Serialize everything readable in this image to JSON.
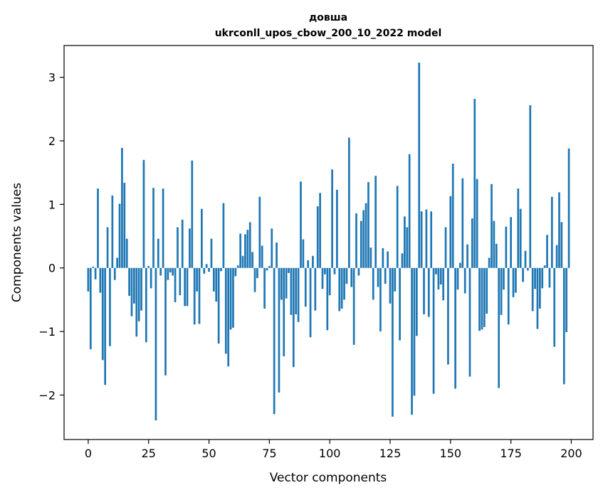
{
  "chart_data": {
    "type": "bar",
    "title": "довша",
    "subtitle": "ukrconll_upos_cbow_200_10_2022 model",
    "xlabel": "Vector components",
    "ylabel": "Components values",
    "xlim": [
      -10,
      209
    ],
    "ylim": [
      -2.7,
      3.5
    ],
    "xticks": [
      0,
      25,
      50,
      75,
      100,
      125,
      150,
      175,
      200
    ],
    "xtick_labels": [
      "0",
      "25",
      "50",
      "75",
      "100",
      "125",
      "150",
      "175",
      "200"
    ],
    "yticks": [
      -2,
      -1,
      0,
      1,
      2,
      3
    ],
    "ytick_labels": [
      "−2",
      "−1",
      "0",
      "1",
      "2",
      "3"
    ],
    "grid": false,
    "bar_color": "#1f77b4",
    "x": [
      0,
      1,
      2,
      3,
      4,
      5,
      6,
      7,
      8,
      9,
      10,
      11,
      12,
      13,
      14,
      15,
      16,
      17,
      18,
      19,
      20,
      21,
      22,
      23,
      24,
      25,
      26,
      27,
      28,
      29,
      30,
      31,
      32,
      33,
      34,
      35,
      36,
      37,
      38,
      39,
      40,
      41,
      42,
      43,
      44,
      45,
      46,
      47,
      48,
      49,
      50,
      51,
      52,
      53,
      54,
      55,
      56,
      57,
      58,
      59,
      60,
      61,
      62,
      63,
      64,
      65,
      66,
      67,
      68,
      69,
      70,
      71,
      72,
      73,
      74,
      75,
      76,
      77,
      78,
      79,
      80,
      81,
      82,
      83,
      84,
      85,
      86,
      87,
      88,
      89,
      90,
      91,
      92,
      93,
      94,
      95,
      96,
      97,
      98,
      99,
      100,
      101,
      102,
      103,
      104,
      105,
      106,
      107,
      108,
      109,
      110,
      111,
      112,
      113,
      114,
      115,
      116,
      117,
      118,
      119,
      120,
      121,
      122,
      123,
      124,
      125,
      126,
      127,
      128,
      129,
      130,
      131,
      132,
      133,
      134,
      135,
      136,
      137,
      138,
      139,
      140,
      141,
      142,
      143,
      144,
      145,
      146,
      147,
      148,
      149,
      150,
      151,
      152,
      153,
      154,
      155,
      156,
      157,
      158,
      159,
      160,
      161,
      162,
      163,
      164,
      165,
      166,
      167,
      168,
      169,
      170,
      171,
      172,
      173,
      174,
      175,
      176,
      177,
      178,
      179,
      180,
      181,
      182,
      183,
      184,
      185,
      186,
      187,
      188,
      189,
      190,
      191,
      192,
      193,
      194,
      195,
      196,
      197,
      198,
      199
    ],
    "values": [
      -0.37,
      -1.28,
      0.02,
      -0.18,
      1.25,
      -0.39,
      -1.45,
      -1.84,
      0.64,
      -1.23,
      1.14,
      -0.19,
      0.16,
      1.01,
      1.89,
      1.34,
      0.46,
      -0.44,
      -0.76,
      -0.56,
      -1.08,
      -0.84,
      -0.67,
      1.7,
      -1.17,
      0.03,
      -0.32,
      1.26,
      -2.4,
      0.46,
      -0.12,
      1.25,
      -1.69,
      -0.19,
      -0.07,
      -0.12,
      -0.54,
      0.64,
      -0.43,
      0.76,
      -0.6,
      -0.6,
      0.62,
      1.69,
      -0.89,
      -0.37,
      -0.88,
      0.93,
      -0.09,
      0.06,
      -0.06,
      0.46,
      -0.37,
      -0.53,
      -1.19,
      -0.05,
      1.02,
      -1.35,
      -1.55,
      -0.97,
      -0.94,
      -0.13,
      0.04,
      0.54,
      0.19,
      0.53,
      0.6,
      0.72,
      0.25,
      -0.38,
      -0.16,
      1.12,
      0.35,
      -0.64,
      -0.04,
      0.03,
      0.62,
      -2.3,
      0.4,
      -1.96,
      -0.5,
      -1.39,
      -0.48,
      -0.08,
      -0.74,
      -1.56,
      -0.73,
      -0.85,
      1.36,
      0.45,
      -0.61,
      0.12,
      -1.09,
      0.19,
      -0.67,
      0.97,
      1.18,
      -0.33,
      -0.1,
      -0.98,
      -0.43,
      1.55,
      -0.1,
      1.23,
      -0.68,
      -0.64,
      -0.5,
      -0.25,
      2.05,
      -0.3,
      -1.21,
      0.86,
      -0.12,
      0.74,
      0.91,
      1.02,
      1.35,
      0.32,
      -0.5,
      1.45,
      -0.3,
      -1.0,
      0.31,
      -0.25,
      0.26,
      -0.56,
      -2.34,
      -0.37,
      1.29,
      -1.14,
      0.23,
      0.81,
      0.64,
      1.79,
      -2.31,
      -2.01,
      -1.07,
      3.23,
      0.89,
      -0.73,
      0.92,
      -0.77,
      0.89,
      -1.98,
      -0.1,
      -0.34,
      -0.26,
      -0.51,
      0.64,
      -1.52,
      1.13,
      1.64,
      -1.9,
      -0.34,
      0.08,
      1.41,
      -0.4,
      0.37,
      -1.71,
      0.78,
      2.66,
      1.4,
      -0.99,
      -0.97,
      -0.93,
      -0.72,
      0.16,
      1.32,
      0.74,
      0.38,
      -1.89,
      -0.74,
      -0.34,
      0.65,
      -0.89,
      0.8,
      -0.46,
      -0.39,
      1.25,
      0.93,
      -0.22,
      0.27,
      -0.04,
      2.56,
      -0.68,
      -0.33,
      -0.96,
      -0.64,
      -0.32,
      0.04,
      0.52,
      -0.31,
      1.12,
      -1.24,
      0.36,
      1.19,
      0.72,
      -1.83,
      -1.01,
      1.88
    ]
  }
}
